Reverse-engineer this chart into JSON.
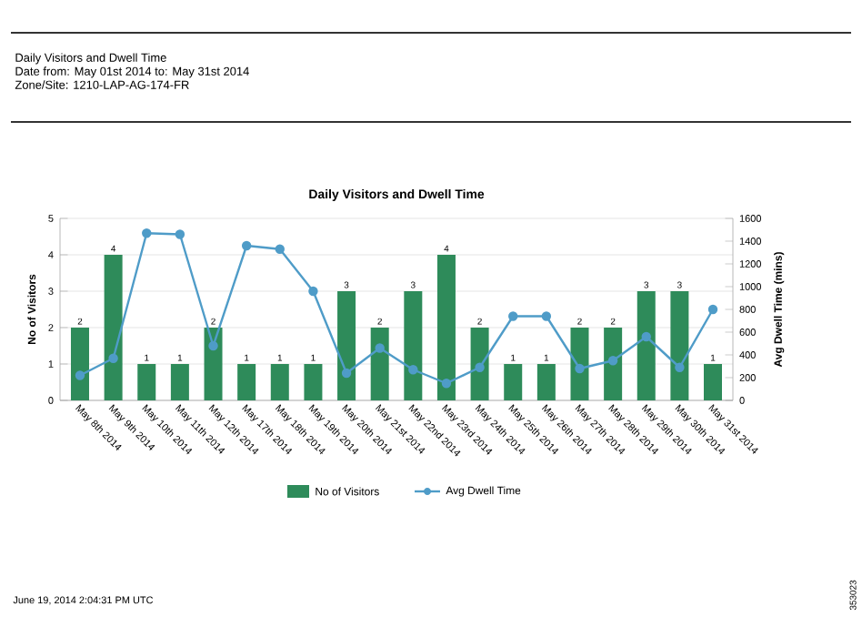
{
  "chart_data": {
    "type": "bar",
    "title": "Daily Visitors and Dwell Time",
    "categories": [
      "May 8th 2014",
      "May 9th 2014",
      "May 10th 2014",
      "May 11th 2014",
      "May 12th 2014",
      "May 17th 2014",
      "May 18th 2014",
      "May 19th 2014",
      "May 20th 2014",
      "May 21st 2014",
      "May 22nd 2014",
      "May 23rd 2014",
      "May 24th 2014",
      "May 25th 2014",
      "May 26th 2014",
      "May 27th 2014",
      "May 28th 2014",
      "May 29th 2014",
      "May 30th 2014",
      "May 31st 2014"
    ],
    "series": [
      {
        "name": "No of Visitors",
        "color": "#2e8b5a",
        "values": [
          2,
          4,
          1,
          1,
          2,
          1,
          1,
          1,
          3,
          2,
          3,
          4,
          2,
          1,
          1,
          2,
          2,
          3,
          3,
          1
        ],
        "value_labels": [
          "2",
          "4",
          "1",
          "1",
          "2",
          "1",
          "1",
          "1",
          "3",
          "2",
          "3",
          "4",
          "2",
          "1",
          "1",
          "2",
          "2",
          "3",
          "3",
          "1"
        ]
      },
      {
        "name": "Avg Dwell Time",
        "type": "line",
        "axis": "y2",
        "color": "#4f9cc8",
        "marker": "circle",
        "values": [
          220,
          370,
          1470,
          1460,
          480,
          1360,
          1330,
          960,
          240,
          460,
          270,
          150,
          290,
          740,
          740,
          280,
          350,
          560,
          290,
          800
        ]
      }
    ],
    "ylabel": "No of Visitors",
    "y2label": "Avg Dwell Time (mins)",
    "ylim": [
      0,
      5
    ],
    "yticks": [
      0,
      1,
      2,
      3,
      4,
      5
    ],
    "y2lim": [
      0,
      1600
    ],
    "y2ticks": [
      0,
      200,
      400,
      600,
      800,
      1000,
      1200,
      1400,
      1600
    ],
    "grid": "y",
    "legend": "bottom",
    "annotations": [
      "Daily Visitors and Dwell Time",
      "Date from: May 01st 2014 to: May 31st 2014",
      "Zone/Site: 1210-LAP-AG-174-FR",
      "June 19, 2014 2:04:31 PM UTC",
      "353023"
    ]
  }
}
